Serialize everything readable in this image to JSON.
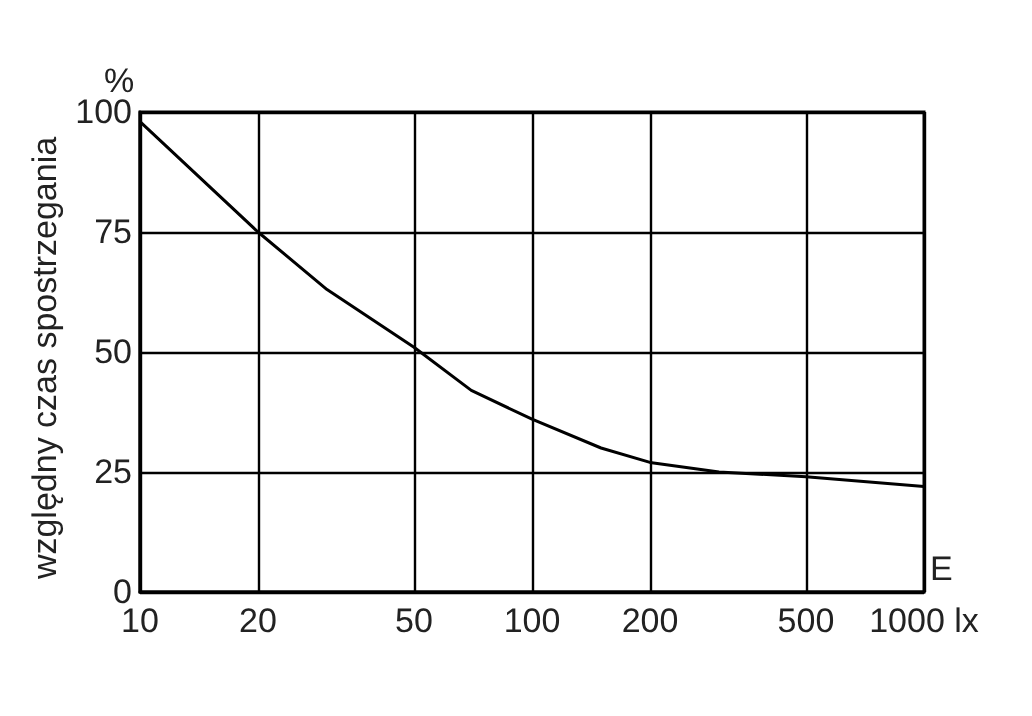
{
  "chart_data": {
    "type": "line",
    "ylabel": "względny czas spostrzegania",
    "xlabel": "E",
    "annotations": [
      "%"
    ],
    "x": [
      10,
      20,
      30,
      50,
      70,
      100,
      150,
      200,
      300,
      500,
      1000
    ],
    "series": [
      {
        "color": "#000000",
        "values": [
          98,
          75,
          63,
          51,
          42,
          36,
          30,
          27,
          25,
          24,
          22
        ]
      }
    ],
    "log": "x",
    "xlim": [
      10,
      1000
    ],
    "xticks": [
      10,
      20,
      50,
      100,
      200,
      500,
      {
        "value": 1000,
        "label": "1000 lx"
      }
    ],
    "ylim": [
      0,
      100
    ],
    "yticks": [
      0,
      25,
      50,
      75,
      100
    ],
    "grid": true,
    "marker": "none",
    "line_style": "solid"
  }
}
